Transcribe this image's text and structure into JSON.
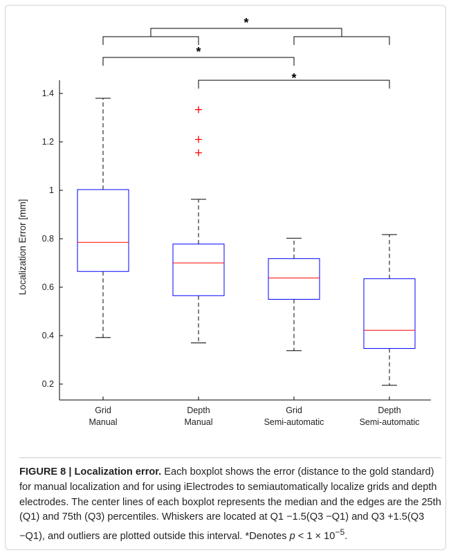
{
  "chart_data": {
    "type": "boxplot",
    "ylabel": "Localization Error [mm]",
    "xlabel": "",
    "ylim": [
      0.16,
      1.45
    ],
    "yticks": [
      0.2,
      0.4,
      0.6,
      0.8,
      1,
      1.2,
      1.4
    ],
    "ytick_labels": [
      "0.2",
      "0.4",
      "0.6",
      "0.8",
      "1",
      "1.2",
      "1.4"
    ],
    "grid": false,
    "categories": [
      {
        "line1": "Grid",
        "line2": "Manual"
      },
      {
        "line1": "Depth",
        "line2": "Manual"
      },
      {
        "line1": "Grid",
        "line2": "Semi-automatic"
      },
      {
        "line1": "Depth",
        "line2": "Semi-automatic"
      }
    ],
    "boxes": [
      {
        "whisker_low": 0.392,
        "q1": 0.665,
        "median": 0.785,
        "q3": 1.003,
        "whisker_high": 1.38,
        "outliers": []
      },
      {
        "whisker_low": 0.37,
        "q1": 0.565,
        "median": 0.7,
        "q3": 0.778,
        "whisker_high": 0.963,
        "outliers": [
          1.333,
          1.21,
          1.155
        ]
      },
      {
        "whisker_low": 0.338,
        "q1": 0.55,
        "median": 0.638,
        "q3": 0.718,
        "whisker_high": 0.802,
        "outliers": []
      },
      {
        "whisker_low": 0.195,
        "q1": 0.347,
        "median": 0.422,
        "q3": 0.635,
        "whisker_high": 0.817,
        "outliers": []
      }
    ],
    "significance": [
      {
        "group_a": [
          1,
          2
        ],
        "group_b": [
          3,
          4
        ],
        "marker": "*"
      },
      {
        "group_a": [
          1
        ],
        "group_b": [
          3
        ],
        "marker": "*"
      },
      {
        "group_a": [
          2
        ],
        "group_b": [
          4
        ],
        "marker": "*"
      }
    ],
    "colors": {
      "box": "#0000ff",
      "median": "#ff0000",
      "whisker": "#000000",
      "outlier": "#ff0000",
      "bracket": "#000000"
    }
  },
  "caption": {
    "label": "FIGURE 8 |",
    "title": "Localization error.",
    "text_before_p": "Each boxplot shows the error (distance to the gold standard) for manual localization and for using iElectrodes to semiautomatically localize grids and depth electrodes. The center lines of each boxplot represents the median and the edges are the 25th (Q1) and 75th (Q3) percentiles. Whiskers are located at Q1 −1.5(Q3 −Q1) and Q3 +1.5(Q3 −Q1), and outliers are plotted outside this interval. *Denotes ",
    "p_symbol": "p",
    "p_relation": " < 1 × 10",
    "p_exponent": "−5",
    "text_end": "."
  }
}
